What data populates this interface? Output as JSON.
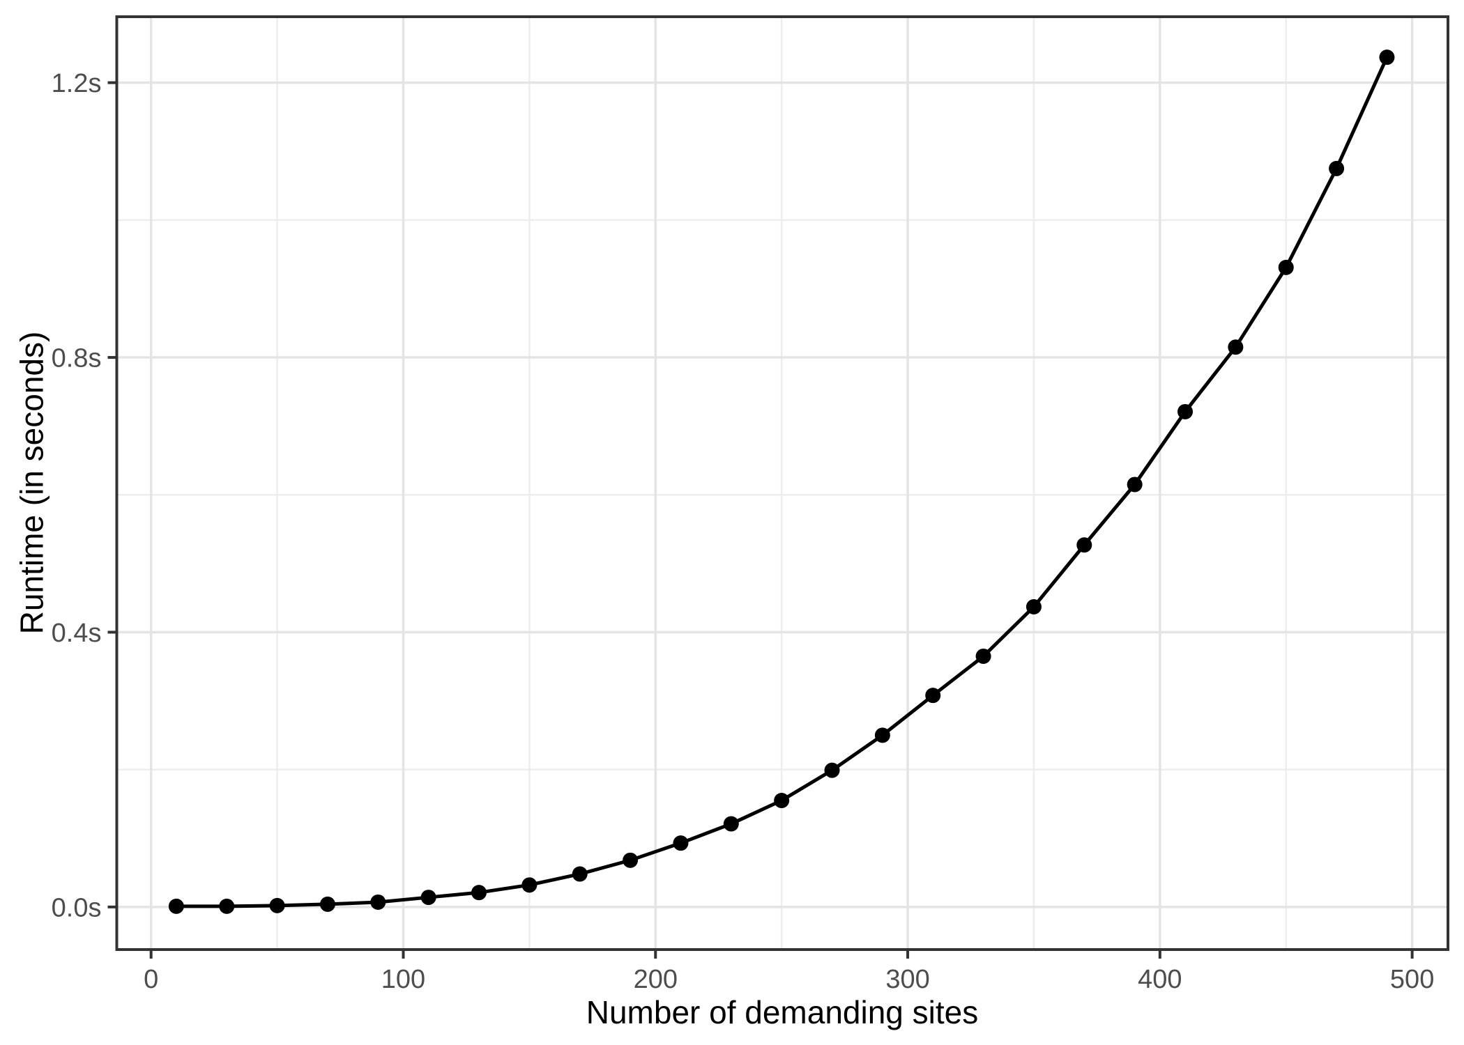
{
  "chart_data": {
    "type": "line",
    "title": "",
    "xlabel": "Number of demanding sites",
    "ylabel": "Runtime (in seconds)",
    "series": [
      {
        "name": "runtime",
        "marker": "circle",
        "x": [
          10,
          30,
          50,
          70,
          90,
          110,
          130,
          150,
          170,
          190,
          210,
          230,
          250,
          270,
          290,
          310,
          330,
          350,
          370,
          390,
          410,
          430,
          450,
          470,
          490
        ],
        "y": [
          0.001,
          0.001,
          0.002,
          0.004,
          0.007,
          0.014,
          0.021,
          0.032,
          0.048,
          0.068,
          0.093,
          0.121,
          0.155,
          0.199,
          0.25,
          0.308,
          0.365,
          0.437,
          0.527,
          0.615,
          0.721,
          0.815,
          0.931,
          1.075,
          1.237
        ]
      }
    ],
    "xlim": [
      -13.6,
      514.2
    ],
    "ylim": [
      -0.062,
      1.296
    ],
    "x_ticks": {
      "values": [
        0,
        100,
        200,
        300,
        400,
        500
      ],
      "labels": [
        "0",
        "100",
        "200",
        "300",
        "400",
        "500"
      ]
    },
    "y_ticks": {
      "values": [
        0,
        0.4,
        0.8,
        1.2
      ],
      "labels": [
        "0.0s",
        "0.4s",
        "0.8s",
        "1.2s"
      ]
    },
    "x_minor_gridlines": [
      50,
      150,
      250,
      350,
      450
    ],
    "y_minor_gridlines": [
      0.2,
      0.6,
      1.0
    ],
    "grid": "on",
    "legend": "none",
    "colors": {
      "background": "#FFFFFF",
      "panel_background": "#FFFFFF",
      "panel_border": "#333333",
      "grid_major": "#E4E4E4",
      "grid_minor": "#EDEDED",
      "tick_mark": "#333333",
      "tick_label": "#4D4D4D",
      "axis_title": "#000000",
      "line": "#000000",
      "point": "#000000"
    }
  }
}
